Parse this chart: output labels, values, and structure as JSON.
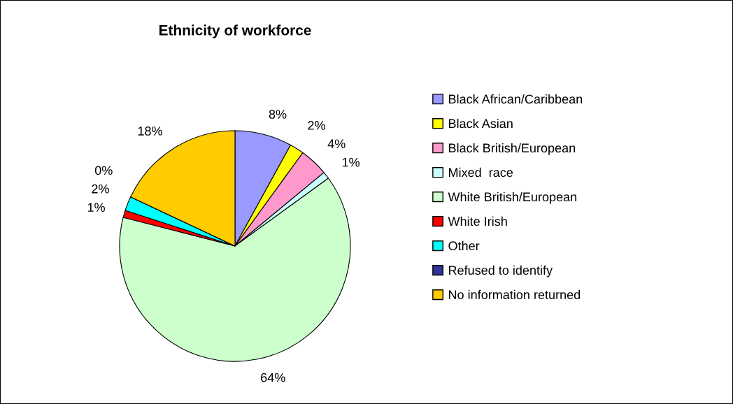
{
  "chart_data": {
    "type": "pie",
    "title": "Ethnicity of workforce",
    "categories": [
      "Black African/Caribbean",
      "Black Asian",
      "Black British/European",
      "Mixed  race",
      "White British/European",
      "White Irish",
      "Other",
      "Refused to identify",
      "No information returned"
    ],
    "values": [
      8,
      2,
      4,
      1,
      64,
      1,
      2,
      0,
      18
    ],
    "value_labels": [
      "8%",
      "2%",
      "4%",
      "1%",
      "64%",
      "1%",
      "2%",
      "0%",
      "18%"
    ],
    "colors": [
      "#9999ff",
      "#ffff00",
      "#ff99cc",
      "#ccffff",
      "#ccffcc",
      "#ff0000",
      "#00ffff",
      "#333399",
      "#ffcc00"
    ],
    "legend": "right"
  }
}
